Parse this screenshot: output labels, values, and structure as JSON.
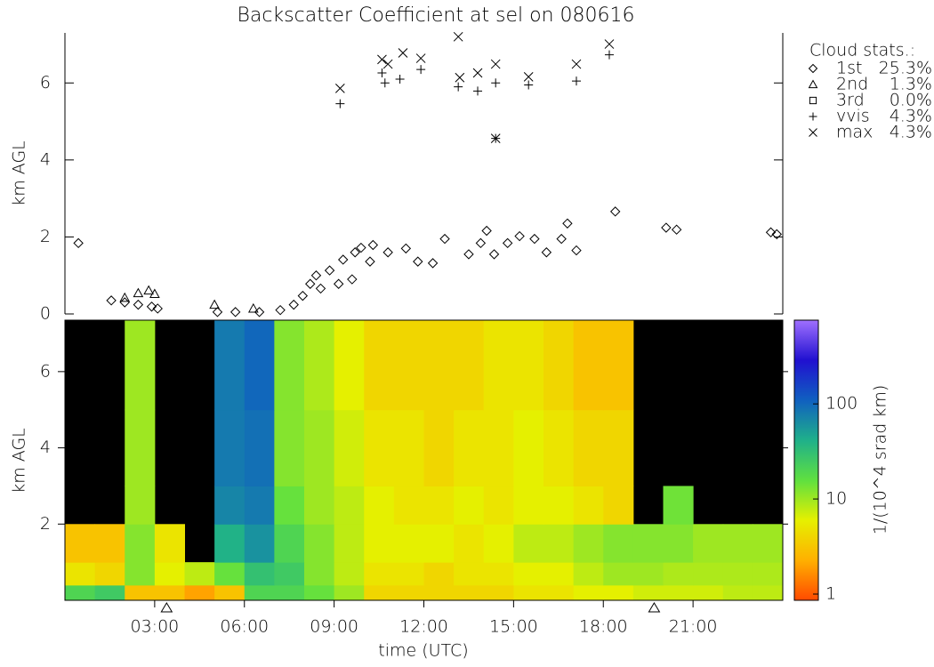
{
  "chart_data": [
    {
      "type": "scatter",
      "title": "Backscatter Coefficient at sel on 080616",
      "ylabel": "km AGL",
      "xlim": [
        0,
        24
      ],
      "ylim": [
        0,
        7.3
      ],
      "yticks": [
        0,
        2,
        4,
        6
      ],
      "legend_title": "Cloud stats.:",
      "series": [
        {
          "name": "1st",
          "marker": "diamond",
          "color": "#000000",
          "stat": {
            "value": 25.3,
            "label": "25.3%"
          },
          "x": [
            0.45,
            1.55,
            2.0,
            2.45,
            2.9,
            3.1,
            5.1,
            5.7,
            6.5,
            7.2,
            7.65,
            7.95,
            8.2,
            8.4,
            8.55,
            8.85,
            9.15,
            9.3,
            9.6,
            9.7,
            9.9,
            10.2,
            10.3,
            10.8,
            11.4,
            11.8,
            12.3,
            12.7,
            13.5,
            13.9,
            14.1,
            14.35,
            14.8,
            15.2,
            15.7,
            16.1,
            16.6,
            16.8,
            17.1,
            18.4,
            20.1,
            20.45,
            23.6,
            23.8
          ],
          "values": [
            1.84,
            0.35,
            0.3,
            0.24,
            0.19,
            0.14,
            0.05,
            0.05,
            0.05,
            0.1,
            0.24,
            0.47,
            0.78,
            1.0,
            0.66,
            1.13,
            0.78,
            1.41,
            0.9,
            1.6,
            1.72,
            1.36,
            1.79,
            1.6,
            1.7,
            1.36,
            1.32,
            1.95,
            1.55,
            1.84,
            2.16,
            1.55,
            1.84,
            2.02,
            1.95,
            1.6,
            1.95,
            2.35,
            1.65,
            2.66,
            2.24,
            2.19,
            2.12,
            2.07
          ]
        },
        {
          "name": "2nd",
          "marker": "triangle",
          "color": "#000000",
          "stat": {
            "value": 1.3,
            "label": "1.3%"
          },
          "x": [
            2.0,
            2.45,
            2.8,
            3.0,
            5.0,
            6.3
          ],
          "values": [
            0.42,
            0.54,
            0.61,
            0.52,
            0.24,
            0.14
          ]
        },
        {
          "name": "3rd",
          "marker": "square",
          "color": "#000000",
          "stat": {
            "value": 0.0,
            "label": "0.0%"
          },
          "x": [],
          "values": []
        },
        {
          "name": "vvis",
          "marker": "plus",
          "color": "#000000",
          "stat": {
            "value": 4.3,
            "label": "4.3%"
          },
          "x": [
            9.2,
            10.6,
            10.7,
            11.2,
            11.9,
            13.15,
            13.8,
            14.4,
            15.5,
            17.1,
            18.2,
            14.4
          ],
          "values": [
            5.46,
            6.26,
            6.0,
            6.1,
            6.35,
            5.9,
            5.79,
            6.0,
            5.95,
            6.05,
            6.73,
            4.56
          ]
        },
        {
          "name": "max",
          "marker": "cross",
          "color": "#000000",
          "stat": {
            "value": 4.3,
            "label": "4.3%"
          },
          "x": [
            9.2,
            10.6,
            10.8,
            11.3,
            11.9,
            13.15,
            13.2,
            13.8,
            14.4,
            15.5,
            17.1,
            18.2,
            14.4
          ],
          "values": [
            5.86,
            6.61,
            6.49,
            6.78,
            6.64,
            7.2,
            6.14,
            6.26,
            6.49,
            6.16,
            6.49,
            7.01,
            4.56
          ]
        }
      ]
    },
    {
      "type": "heatmap",
      "ylabel": "km AGL",
      "xlabel": "time (UTC)",
      "colorbar_label": "1/(10^4 srad km)",
      "xlim": [
        0,
        24
      ],
      "ylim": [
        0,
        7.35
      ],
      "xticks": [
        {
          "value": 3,
          "label": "03:00"
        },
        {
          "value": 6,
          "label": "06:00"
        },
        {
          "value": 9,
          "label": "09:00"
        },
        {
          "value": 12,
          "label": "12:00"
        },
        {
          "value": 15,
          "label": "15:00"
        },
        {
          "value": 18,
          "label": "18:00"
        },
        {
          "value": 21,
          "label": "21:00"
        }
      ],
      "yticks": [
        2,
        4,
        6
      ],
      "x_bins": [
        0,
        1,
        2,
        3,
        4,
        5,
        6,
        7,
        8,
        9,
        10,
        11,
        12,
        13,
        14,
        15,
        16,
        17,
        18,
        19,
        20,
        21,
        22,
        23,
        24
      ],
      "y_bins": [
        0,
        0.4,
        1,
        2,
        3,
        5,
        7.35
      ],
      "z": [
        [
          20,
          25,
          3,
          3,
          2,
          3,
          20,
          20,
          15,
          10,
          4,
          4,
          4,
          4,
          4,
          5,
          5,
          6,
          6,
          7,
          7,
          7,
          8,
          8
        ],
        [
          5,
          4,
          12,
          6,
          8,
          15,
          30,
          25,
          12,
          8,
          5,
          5,
          4,
          5,
          5,
          6,
          6,
          8,
          10,
          10,
          9,
          9,
          9,
          9
        ],
        [
          3,
          3,
          12,
          5,
          null,
          40,
          60,
          20,
          12,
          8,
          6,
          6,
          6,
          5,
          6,
          8,
          8,
          10,
          12,
          12,
          12,
          10,
          10,
          10
        ],
        [
          null,
          null,
          10,
          null,
          null,
          70,
          80,
          15,
          10,
          8,
          6,
          5,
          5,
          6,
          5,
          6,
          6,
          5,
          4,
          null,
          14,
          null,
          null,
          null
        ],
        [
          null,
          null,
          10,
          null,
          null,
          80,
          90,
          12,
          10,
          7,
          5,
          5,
          4,
          5,
          5,
          6,
          5,
          4,
          4,
          null,
          null,
          null,
          null,
          null
        ],
        [
          null,
          null,
          10,
          null,
          null,
          80,
          100,
          12,
          9,
          6,
          4,
          4,
          4,
          4,
          5,
          5,
          4,
          3,
          3,
          null,
          null,
          null,
          null,
          null
        ]
      ],
      "zscale": "log",
      "zlim": [
        0.86,
        760
      ],
      "zticks": [
        1,
        10,
        100
      ],
      "colormap": [
        "#ff4a00",
        "#ffb000",
        "#e6f000",
        "#5fe040",
        "#1fb08a",
        "#1060c0",
        "#2010d0",
        "#a070ff"
      ],
      "background": "#000000",
      "markers_x": [
        3.4,
        19.7
      ]
    }
  ]
}
